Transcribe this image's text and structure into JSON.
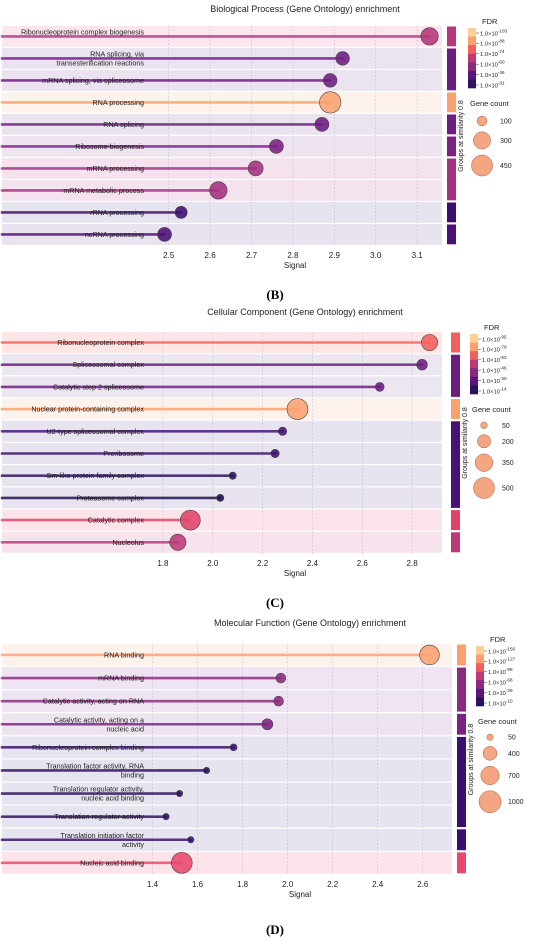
{
  "colors": {
    "fdr_scale": [
      "#2c115f",
      "#5a167e",
      "#8c2981",
      "#bf3a74",
      "#f1605d",
      "#fe9f6d",
      "#fecf92"
    ],
    "bubble_face": "#f2976c"
  },
  "chart_data": [
    {
      "panel_label": "(B)",
      "type": "scatter",
      "title": "Biological Process (Gene Ontology) enrichment",
      "xlabel": "Signal",
      "xlim": [
        2.45,
        3.16
      ],
      "xticks": [
        "2.5",
        "2.6",
        "2.7",
        "2.8",
        "2.9",
        "3.0",
        "3.1"
      ],
      "tick_values": [
        2.5,
        2.6,
        2.7,
        2.8,
        2.9,
        3.0,
        3.1
      ],
      "grid": "vertical dotted",
      "terms": [
        {
          "label": "Ribonucleoprotein complex biogenesis",
          "signal": 3.13,
          "gene_count": 310,
          "fdr_exponent": -103,
          "color": "#b5367a",
          "band": "#fbe6ee",
          "group": 0
        },
        {
          "label": "RNA splicing, via transesterification reactions",
          "signal": 2.92,
          "gene_count": 190,
          "fdr_exponent": -58,
          "color": "#6b1d80",
          "band": "#ebe4f0",
          "group": 1
        },
        {
          "label": "mRNA splicing, via spliceosome",
          "signal": 2.89,
          "gene_count": 190,
          "fdr_exponent": -58,
          "color": "#6b1d80",
          "band": "#ebe4f0",
          "group": 1
        },
        {
          "label": "RNA processing",
          "signal": 2.89,
          "gene_count": 470,
          "fdr_exponent": -103,
          "color": "#fba06f",
          "band": "#fef3ec",
          "group": 2
        },
        {
          "label": "RNA splicing",
          "signal": 2.87,
          "gene_count": 200,
          "fdr_exponent": -58,
          "color": "#6b1d80",
          "band": "#ebe4f0",
          "group": 3
        },
        {
          "label": "Ribosome biogenesis",
          "signal": 2.76,
          "gene_count": 200,
          "fdr_exponent": -62,
          "color": "#7a2181",
          "band": "#ede4f0",
          "group": 4
        },
        {
          "label": "mRNA processing",
          "signal": 2.71,
          "gene_count": 230,
          "fdr_exponent": -74,
          "color": "#a3307e",
          "band": "#f4e3ef",
          "group": 5
        },
        {
          "label": "mRNA metabolic process",
          "signal": 2.62,
          "gene_count": 310,
          "fdr_exponent": -74,
          "color": "#a3307e",
          "band": "#f4e3ef",
          "group": 5
        },
        {
          "label": "rRNA processing",
          "signal": 2.53,
          "gene_count": 150,
          "fdr_exponent": -35,
          "color": "#3b0f70",
          "band": "#e6e4ee",
          "group": 6
        },
        {
          "label": "ncRNA processing",
          "signal": 2.49,
          "gene_count": 200,
          "fdr_exponent": -42,
          "color": "#4a1078",
          "band": "#e8e3ef",
          "group": 7
        }
      ],
      "legend": {
        "fdr_title": "FDR",
        "fdr_entries": [
          "1.0×10^-103",
          "1.0×10^-88",
          "1.0×10^-74",
          "1.0×10^-60",
          "1.0×10^-46",
          "1.0×10^-31"
        ],
        "size_title": "Gene count",
        "size_entries": [
          100,
          300,
          450
        ],
        "group_title": "Groups at similarity 0.8"
      }
    },
    {
      "panel_label": "(C)",
      "type": "scatter",
      "title": "Cellular Component (Gene Ontology) enrichment",
      "xlabel": "Signal",
      "xlim": [
        1.74,
        2.92
      ],
      "xticks": [
        "1.8",
        "2.0",
        "2.2",
        "2.4",
        "2.6",
        "2.8"
      ],
      "tick_values": [
        1.8,
        2.0,
        2.2,
        2.4,
        2.6,
        2.8
      ],
      "grid": "vertical dotted",
      "terms": [
        {
          "label": "Ribonucleoprotein complex",
          "signal": 2.87,
          "gene_count": 300,
          "fdr_exponent": -92,
          "color": "#f1605d",
          "band": "#fde6e5",
          "group": 0
        },
        {
          "label": "Spliceosomal complex",
          "signal": 2.84,
          "gene_count": 130,
          "fdr_exponent": -50,
          "color": "#6b1d80",
          "band": "#ece6f1",
          "group": 1
        },
        {
          "label": "Catalytic step 2 spliceosome",
          "signal": 2.67,
          "gene_count": 90,
          "fdr_exponent": -50,
          "color": "#6b1d80",
          "band": "#ece6f1",
          "group": 1
        },
        {
          "label": "Nuclear protein-containing complex",
          "signal": 2.34,
          "gene_count": 500,
          "fdr_exponent": -95,
          "color": "#fba06f",
          "band": "#fef3ec",
          "group": 2
        },
        {
          "label": "U2-type spliceosomal complex",
          "signal": 2.28,
          "gene_count": 80,
          "fdr_exponent": -40,
          "color": "#4a1078",
          "band": "#e7e4ef",
          "group": 3
        },
        {
          "label": "Preribosome",
          "signal": 2.25,
          "gene_count": 80,
          "fdr_exponent": -30,
          "color": "#3b0f70",
          "band": "#e7e4ef",
          "group": 3
        },
        {
          "label": "Sm-like protein family complex",
          "signal": 2.08,
          "gene_count": 60,
          "fdr_exponent": -25,
          "color": "#2c115f",
          "band": "#e7e4ef",
          "group": 3
        },
        {
          "label": "Proteasome complex",
          "signal": 2.03,
          "gene_count": 60,
          "fdr_exponent": -14,
          "color": "#1e0f4b",
          "band": "#e7e4ef",
          "group": 3
        },
        {
          "label": "Catalytic complex",
          "signal": 1.91,
          "gene_count": 450,
          "fdr_exponent": -79,
          "color": "#e0436a",
          "band": "#fce4ea",
          "group": 4
        },
        {
          "label": "Nucleolus",
          "signal": 1.86,
          "gene_count": 300,
          "fdr_exponent": -70,
          "color": "#bb3a77",
          "band": "#f7e3ee",
          "group": 5
        }
      ],
      "legend": {
        "fdr_title": "FDR",
        "fdr_entries": [
          "1.0×10^-95",
          "1.0×10^-79",
          "1.0×10^-62",
          "1.0×10^-46",
          "1.0×10^-30",
          "1.0×10^-14"
        ],
        "size_title": "Gene count",
        "size_entries": [
          50,
          200,
          350,
          500
        ],
        "group_title": "Groups at similarity 0.8"
      }
    },
    {
      "panel_label": "(D)",
      "type": "scatter",
      "title": "Molecular Function (Gene Ontology) enrichment",
      "xlabel": "Signal",
      "xlim": [
        1.38,
        2.73
      ],
      "xticks": [
        "1.4",
        "1.6",
        "1.8",
        "2.0",
        "2.2",
        "2.4",
        "2.6"
      ],
      "tick_values": [
        1.4,
        1.6,
        1.8,
        2.0,
        2.2,
        2.4,
        2.6
      ],
      "grid": "vertical dotted",
      "terms": [
        {
          "label": "RNA binding",
          "signal": 2.63,
          "gene_count": 800,
          "fdr_exponent": -156,
          "color": "#fba06f",
          "band": "#fef3ec",
          "group": 0
        },
        {
          "label": "mRNA binding",
          "signal": 1.97,
          "gene_count": 200,
          "fdr_exponent": -68,
          "color": "#8c2981",
          "band": "#efe4f1",
          "group": 1
        },
        {
          "label": "Catalytic activity, acting on RNA",
          "signal": 1.96,
          "gene_count": 200,
          "fdr_exponent": -68,
          "color": "#8c2981",
          "band": "#efe4f1",
          "group": 1
        },
        {
          "label": "Catalytic activity, acting on a nucleic acid",
          "signal": 1.91,
          "gene_count": 250,
          "fdr_exponent": -60,
          "color": "#7a2181",
          "band": "#ede4f0",
          "group": 2
        },
        {
          "label": "Ribonucleoprotein complex binding",
          "signal": 1.76,
          "gene_count": 100,
          "fdr_exponent": -30,
          "color": "#3b0f70",
          "band": "#e6e4ee",
          "group": 3
        },
        {
          "label": "Translation factor activity, RNA binding",
          "signal": 1.64,
          "gene_count": 80,
          "fdr_exponent": -20,
          "color": "#2c115f",
          "band": "#e6e4ee",
          "group": 3
        },
        {
          "label": "Translation regulator activity, nucleic acid binding",
          "signal": 1.52,
          "gene_count": 80,
          "fdr_exponent": -18,
          "color": "#2c115f",
          "band": "#e6e4ee",
          "group": 3
        },
        {
          "label": "Translation regulator activity",
          "signal": 1.46,
          "gene_count": 80,
          "fdr_exponent": -15,
          "color": "#2c115f",
          "band": "#e6e4ee",
          "group": 3
        },
        {
          "label": "Translation initiation factor activity",
          "signal": 1.57,
          "gene_count": 80,
          "fdr_exponent": -20,
          "color": "#3b0f70",
          "band": "#e6e4ee",
          "group": 4
        },
        {
          "label": "Nucleic acid binding",
          "signal": 1.53,
          "gene_count": 900,
          "fdr_exponent": -100,
          "color": "#e8486a",
          "band": "#fde4ea",
          "group": 5
        }
      ],
      "legend": {
        "fdr_title": "FDR",
        "fdr_entries": [
          "1.0×10^-156",
          "1.0×10^-127",
          "1.0×10^-98",
          "1.0×10^-68",
          "1.0×10^-39",
          "1.0×10^-10"
        ],
        "size_title": "Gene count",
        "size_entries": [
          50,
          400,
          700,
          1000
        ],
        "group_title": "Groups at similarity 0.8"
      }
    }
  ]
}
